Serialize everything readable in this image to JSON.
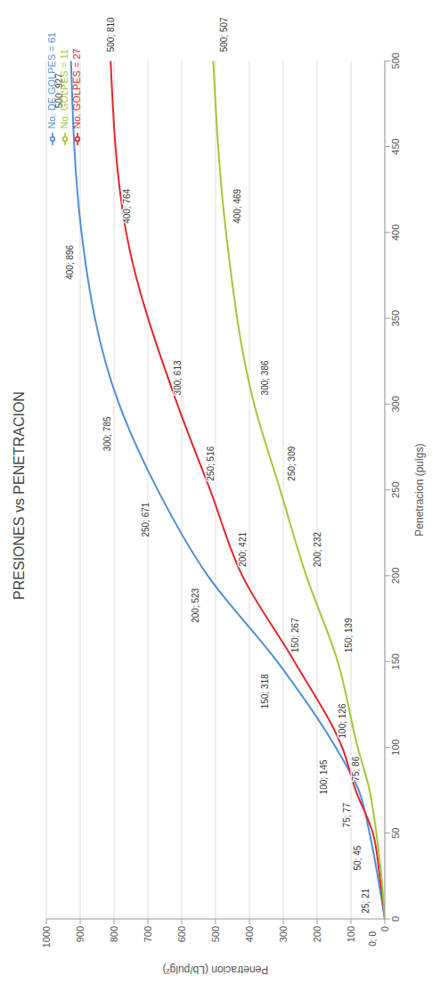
{
  "chart_data": {
    "type": "line",
    "title": "PRESIONES vs PENETRACION",
    "x_label": "Penetracion (pulgs)",
    "y_label": "Penetracion (Lb/pulg²)",
    "x": [
      0,
      25,
      50,
      75,
      100,
      150,
      200,
      250,
      300,
      400,
      500
    ],
    "series": [
      {
        "name": "No. DE GOLPES = 61",
        "color": "#4f8fd6",
        "values": [
          0,
          21,
          45,
          77,
          145,
          318,
          523,
          671,
          785,
          896,
          927
        ],
        "value_labels": [
          "0; 0",
          "25; 21",
          "50; 45",
          "75; 77",
          "100; 145",
          "150; 318",
          "200; 523",
          "250; 671",
          "300; 785",
          "400; 896",
          "500; 927"
        ]
      },
      {
        "name": "No. GOLPES = 27",
        "color": "#e0282e",
        "values": [
          0,
          15,
          35,
          86,
          126,
          267,
          421,
          516,
          613,
          764,
          810
        ],
        "value_labels": [
          null,
          null,
          null,
          "75; 86",
          "100; 126",
          "150; 267",
          "200; 421",
          "250; 516",
          "300; 613",
          "400; 764",
          "500; 810"
        ]
      },
      {
        "name": "No. GOLPES = 11",
        "color": "#a4c639",
        "values": [
          0,
          10,
          25,
          45,
          80,
          139,
          232,
          309,
          386,
          469,
          507
        ],
        "value_labels": [
          null,
          null,
          null,
          null,
          null,
          "150; 139",
          "200; 232",
          "250; 309",
          "300; 386",
          "400; 469",
          "500; 507"
        ]
      }
    ],
    "xlim": [
      0,
      500
    ],
    "xticks": [
      0,
      50,
      100,
      150,
      200,
      250,
      300,
      350,
      400,
      450,
      500
    ],
    "ylim": [
      0,
      1000
    ],
    "yticks": [
      0,
      100,
      200,
      300,
      400,
      500,
      600,
      700,
      800,
      900,
      1000
    ],
    "grid": true,
    "legend": "top-right",
    "data_labels": true,
    "marker": "none",
    "line_style": "solid"
  }
}
